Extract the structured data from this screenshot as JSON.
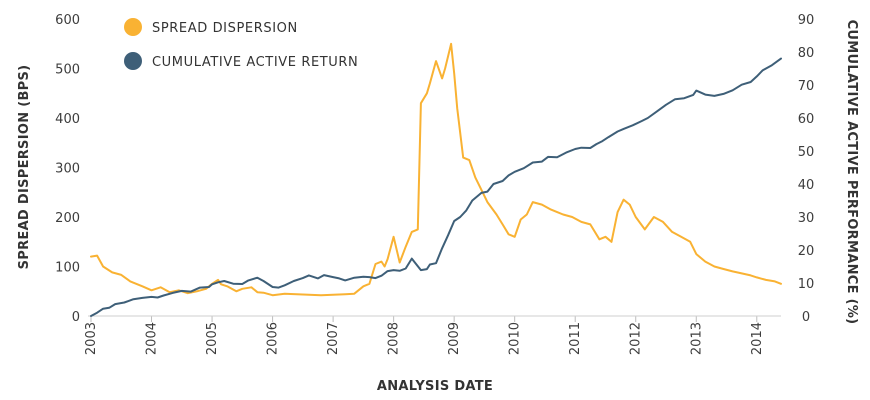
{
  "chart_data": {
    "type": "line",
    "xlabel": "ANALYSIS DATE",
    "ylabel_left": "SPREAD DISPERSION (BPS)",
    "ylabel_right": "CUMULATIVE ACTIVE PERFORMANCE (%)",
    "x_ticks": [
      "2003",
      "2004",
      "2005",
      "2006",
      "2007",
      "2008",
      "2009",
      "2010",
      "2011",
      "2012",
      "2013",
      "2014"
    ],
    "ylim_left": [
      0,
      600
    ],
    "yticks_left": [
      0,
      100,
      200,
      300,
      400,
      500,
      600
    ],
    "ylim_right": [
      0,
      90
    ],
    "yticks_right": [
      0,
      10,
      20,
      30,
      40,
      50,
      60,
      70,
      80,
      90
    ],
    "grid": false,
    "legend": "top-left",
    "series": [
      {
        "name": "SPREAD DISPERSION",
        "axis": "left",
        "color": "#f9b233",
        "x": [
          2003.0,
          2003.1,
          2003.2,
          2003.35,
          2003.5,
          2003.65,
          2003.85,
          2004.0,
          2004.15,
          2004.3,
          2004.45,
          2004.6,
          2004.75,
          2004.9,
          2005.0,
          2005.1,
          2005.15,
          2005.25,
          2005.4,
          2005.5,
          2005.65,
          2005.75,
          2005.85,
          2006.0,
          2006.2,
          2006.4,
          2006.6,
          2006.8,
          2007.0,
          2007.2,
          2007.35,
          2007.5,
          2007.6,
          2007.7,
          2007.8,
          2007.85,
          2007.9,
          2008.0,
          2008.1,
          2008.2,
          2008.3,
          2008.4,
          2008.45,
          2008.55,
          2008.6,
          2008.7,
          2008.8,
          2008.85,
          2008.95,
          2009.0,
          2009.05,
          2009.15,
          2009.25,
          2009.35,
          2009.45,
          2009.55,
          2009.7,
          2009.8,
          2009.9,
          2010.0,
          2010.1,
          2010.2,
          2010.3,
          2010.45,
          2010.6,
          2010.7,
          2010.8,
          2010.95,
          2011.1,
          2011.25,
          2011.4,
          2011.5,
          2011.6,
          2011.7,
          2011.8,
          2011.9,
          2012.0,
          2012.15,
          2012.3,
          2012.45,
          2012.6,
          2012.75,
          2012.9,
          2013.0,
          2013.15,
          2013.3,
          2013.45,
          2013.6,
          2013.75,
          2013.9,
          2014.0,
          2014.15,
          2014.3,
          2014.4
        ],
        "values": [
          120,
          122,
          100,
          88,
          83,
          70,
          60,
          52,
          58,
          48,
          52,
          46,
          50,
          55,
          65,
          73,
          64,
          60,
          50,
          55,
          58,
          48,
          47,
          42,
          45,
          44,
          43,
          42,
          43,
          44,
          45,
          60,
          65,
          105,
          110,
          100,
          115,
          160,
          108,
          140,
          170,
          175,
          430,
          450,
          470,
          515,
          480,
          500,
          550,
          490,
          420,
          320,
          315,
          280,
          255,
          230,
          205,
          185,
          165,
          160,
          195,
          205,
          230,
          225,
          215,
          210,
          205,
          200,
          190,
          185,
          155,
          160,
          150,
          210,
          235,
          225,
          200,
          175,
          200,
          190,
          170,
          160,
          150,
          125,
          110,
          100,
          95,
          90,
          86,
          82,
          78,
          73,
          70,
          65
        ]
      },
      {
        "name": "CUMULATIVE ACTIVE RETURN",
        "axis": "right",
        "color": "#3e5f78",
        "x": [
          2003.0,
          2003.1,
          2003.2,
          2003.3,
          2003.4,
          2003.55,
          2003.7,
          2003.85,
          2004.0,
          2004.1,
          2004.2,
          2004.35,
          2004.5,
          2004.65,
          2004.8,
          2004.95,
          2005.0,
          2005.1,
          2005.2,
          2005.35,
          2005.5,
          2005.6,
          2005.75,
          2005.85,
          2006.0,
          2006.1,
          2006.2,
          2006.35,
          2006.5,
          2006.6,
          2006.75,
          2006.85,
          2007.0,
          2007.1,
          2007.2,
          2007.35,
          2007.5,
          2007.6,
          2007.7,
          2007.8,
          2007.9,
          2008.0,
          2008.1,
          2008.2,
          2008.3,
          2008.45,
          2008.55,
          2008.6,
          2008.7,
          2008.8,
          2008.9,
          2009.0,
          2009.1,
          2009.2,
          2009.3,
          2009.45,
          2009.55,
          2009.65,
          2009.8,
          2009.9,
          2010.0,
          2010.15,
          2010.3,
          2010.45,
          2010.55,
          2010.7,
          2010.85,
          2011.0,
          2011.1,
          2011.25,
          2011.35,
          2011.45,
          2011.55,
          2011.7,
          2011.8,
          2011.95,
          2012.1,
          2012.2,
          2012.35,
          2012.5,
          2012.65,
          2012.8,
          2012.95,
          2013.0,
          2013.15,
          2013.3,
          2013.45,
          2013.6,
          2013.75,
          2013.9,
          2014.0,
          2014.1,
          2014.25,
          2014.4
        ],
        "values": [
          0,
          1.0,
          2.2,
          2.5,
          3.6,
          4.1,
          5.1,
          5.5,
          5.8,
          5.6,
          6.2,
          7.0,
          7.6,
          7.4,
          8.6,
          8.8,
          9.6,
          10.2,
          10.6,
          9.8,
          9.7,
          10.8,
          11.6,
          10.6,
          8.8,
          8.6,
          9.3,
          10.6,
          11.5,
          12.3,
          11.4,
          12.4,
          11.8,
          11.4,
          10.8,
          11.6,
          11.9,
          11.8,
          11.5,
          12.2,
          13.6,
          13.9,
          13.7,
          14.4,
          17.4,
          13.9,
          14.2,
          15.6,
          16.0,
          20.5,
          24.5,
          28.8,
          30.0,
          32.0,
          35.0,
          37.3,
          37.7,
          40.0,
          40.9,
          42.6,
          43.7,
          44.8,
          46.5,
          46.8,
          48.2,
          48.1,
          49.5,
          50.6,
          51.0,
          50.9,
          52.1,
          53.0,
          54.2,
          55.9,
          56.7,
          57.8,
          59.1,
          60.0,
          62.0,
          64.0,
          65.7,
          66.0,
          67.0,
          68.3,
          67.1,
          66.7,
          67.3,
          68.4,
          70.1,
          70.9,
          72.6,
          74.5,
          76.0,
          78.0
        ]
      }
    ]
  }
}
